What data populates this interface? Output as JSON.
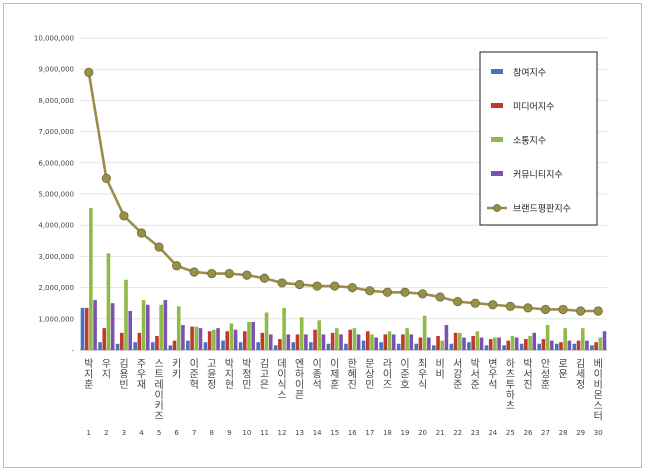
{
  "chart_data": {
    "type": "bar",
    "categories": [
      "박지훈",
      "우지",
      "김용빈",
      "주우재",
      "스트레이키즈",
      "키키",
      "이준혁",
      "고윤정",
      "박지현",
      "박정민",
      "김고은",
      "데이식스",
      "엔하이픈",
      "이종석",
      "이제훈",
      "한혜진",
      "문상민",
      "라이즈",
      "이준호",
      "최우식",
      "비비",
      "서강준",
      "박서준",
      "변우석",
      "하츠투하츠",
      "박서진",
      "안성훈",
      "로운",
      "김세정",
      "베이비몬스터"
    ],
    "ranks": [
      "1",
      "2",
      "3",
      "4",
      "5",
      "6",
      "7",
      "8",
      "9",
      "10",
      "11",
      "12",
      "13",
      "14",
      "15",
      "16",
      "17",
      "18",
      "19",
      "20",
      "21",
      "22",
      "23",
      "24",
      "25",
      "26",
      "27",
      "28",
      "29",
      "30"
    ],
    "ylim": [
      0,
      10000000
    ],
    "yticks": [
      0,
      1000000,
      2000000,
      3000000,
      4000000,
      5000000,
      6000000,
      7000000,
      8000000,
      9000000,
      10000000
    ],
    "ytick_labels": [
      "-",
      "1,000,000",
      "2,000,000",
      "3,000,000",
      "4,000,000",
      "5,000,000",
      "6,000,000",
      "7,000,000",
      "8,000,000",
      "9,000,000",
      "10,000,000"
    ],
    "grid": true,
    "legend_position": "top-right",
    "series": [
      {
        "name": "참여지수",
        "type": "bar",
        "color": "#4472c4",
        "values": [
          1350000,
          250000,
          200000,
          250000,
          250000,
          150000,
          300000,
          250000,
          300000,
          250000,
          250000,
          150000,
          250000,
          250000,
          200000,
          200000,
          300000,
          250000,
          200000,
          200000,
          150000,
          200000,
          250000,
          150000,
          150000,
          200000,
          200000,
          200000,
          200000,
          150000
        ]
      },
      {
        "name": "미디어지수",
        "type": "bar",
        "color": "#c0392b",
        "values": [
          1350000,
          700000,
          550000,
          550000,
          450000,
          300000,
          750000,
          600000,
          600000,
          600000,
          550000,
          350000,
          500000,
          650000,
          550000,
          650000,
          600000,
          500000,
          500000,
          400000,
          450000,
          550000,
          450000,
          350000,
          300000,
          350000,
          350000,
          250000,
          300000,
          250000
        ]
      },
      {
        "name": "소통지수",
        "type": "bar",
        "color": "#8fba47",
        "values": [
          4550000,
          3100000,
          2250000,
          1600000,
          1450000,
          1400000,
          750000,
          650000,
          850000,
          900000,
          1200000,
          1350000,
          1050000,
          950000,
          700000,
          700000,
          500000,
          600000,
          700000,
          1100000,
          300000,
          550000,
          600000,
          400000,
          450000,
          450000,
          800000,
          700000,
          700000,
          400000
        ]
      },
      {
        "name": "커뮤니티지수",
        "type": "bar",
        "color": "#7b52ad",
        "values": [
          1600000,
          1500000,
          1250000,
          1450000,
          1600000,
          800000,
          700000,
          700000,
          650000,
          900000,
          500000,
          500000,
          500000,
          500000,
          500000,
          500000,
          400000,
          500000,
          500000,
          400000,
          800000,
          400000,
          400000,
          400000,
          400000,
          550000,
          300000,
          300000,
          300000,
          600000
        ]
      },
      {
        "name": "브랜드평판지수",
        "type": "line",
        "color": "#9a8f4a",
        "values": [
          8900000,
          5500000,
          4300000,
          3750000,
          3300000,
          2700000,
          2500000,
          2450000,
          2450000,
          2400000,
          2300000,
          2150000,
          2100000,
          2050000,
          2050000,
          2000000,
          1900000,
          1850000,
          1850000,
          1800000,
          1700000,
          1550000,
          1500000,
          1450000,
          1400000,
          1350000,
          1300000,
          1300000,
          1250000,
          1250000
        ]
      }
    ]
  }
}
